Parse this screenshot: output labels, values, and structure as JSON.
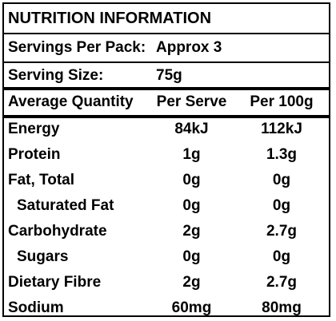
{
  "header": {
    "title": "NUTRITION INFORMATION",
    "servings_label": "Servings Per Pack:",
    "servings_value": "Approx 3",
    "serving_size_label": "Serving Size:",
    "serving_size_value": "75g"
  },
  "columns": {
    "quantity": "Average Quantity",
    "per_serve": "Per Serve",
    "per_100g": "Per 100g"
  },
  "rows": [
    {
      "name": "Energy",
      "per_serve": "84kJ",
      "per_100g": "112kJ"
    },
    {
      "name": "Protein",
      "per_serve": "1g",
      "per_100g": "1.3g"
    },
    {
      "name": "Fat, Total",
      "per_serve": "0g",
      "per_100g": "0g"
    },
    {
      "name": "Saturated Fat",
      "per_serve": "0g",
      "per_100g": "0g"
    },
    {
      "name": "Carbohydrate",
      "per_serve": "2g",
      "per_100g": "2.7g"
    },
    {
      "name": "Sugars",
      "per_serve": "0g",
      "per_100g": "0g"
    },
    {
      "name": "Dietary Fibre",
      "per_serve": "2g",
      "per_100g": "2.7g"
    },
    {
      "name": "Sodium",
      "per_serve": "60mg",
      "per_100g": "80mg"
    }
  ]
}
